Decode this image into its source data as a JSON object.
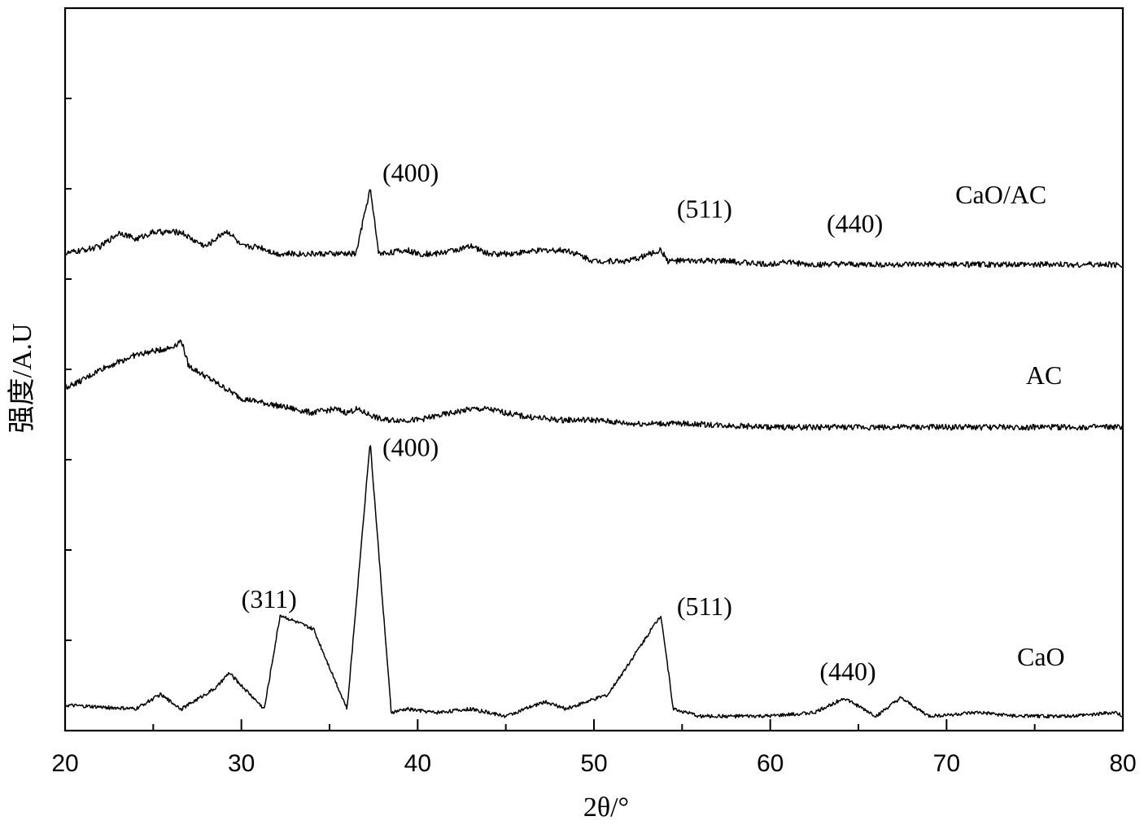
{
  "chart_data": {
    "type": "line",
    "xlabel": "2θ/°",
    "ylabel": "强度/A.U",
    "xlim": [
      20,
      80
    ],
    "x_ticks": [
      20,
      30,
      40,
      50,
      60,
      70,
      80
    ],
    "y_ticks_labeled": false,
    "grid": false,
    "legend": "none",
    "series": [
      {
        "name": "CaO/AC",
        "baseline": 0.64,
        "points": [
          [
            20,
            0.66
          ],
          [
            22,
            0.67
          ],
          [
            23.1,
            0.69
          ],
          [
            24,
            0.68
          ],
          [
            25,
            0.69
          ],
          [
            26.6,
            0.69
          ],
          [
            27.2,
            0.68
          ],
          [
            28,
            0.67
          ],
          [
            29,
            0.69
          ],
          [
            29.3,
            0.69
          ],
          [
            29.5,
            0.685
          ],
          [
            30,
            0.67
          ],
          [
            31,
            0.67
          ],
          [
            32,
            0.66
          ],
          [
            34,
            0.66
          ],
          [
            35.9,
            0.66
          ],
          [
            36.5,
            0.66
          ],
          [
            37.3,
            0.75
          ],
          [
            37.8,
            0.66
          ],
          [
            39.4,
            0.665
          ],
          [
            40,
            0.66
          ],
          [
            41,
            0.66
          ],
          [
            43.1,
            0.67
          ],
          [
            44,
            0.66
          ],
          [
            45,
            0.66
          ],
          [
            47.3,
            0.665
          ],
          [
            48.5,
            0.665
          ],
          [
            50,
            0.65
          ],
          [
            52,
            0.65
          ],
          [
            53.8,
            0.665
          ],
          [
            54.2,
            0.65
          ],
          [
            56,
            0.65
          ],
          [
            57.4,
            0.65
          ],
          [
            60,
            0.645
          ],
          [
            60.7,
            0.65
          ],
          [
            62,
            0.645
          ],
          [
            64.7,
            0.645
          ],
          [
            66,
            0.645
          ],
          [
            70,
            0.645
          ],
          [
            75,
            0.645
          ],
          [
            80,
            0.645
          ]
        ]
      },
      {
        "name": "AC",
        "baseline": 0.42,
        "points": [
          [
            20,
            0.475
          ],
          [
            21,
            0.485
          ],
          [
            22,
            0.5
          ],
          [
            23,
            0.51
          ],
          [
            24,
            0.52
          ],
          [
            25,
            0.525
          ],
          [
            26,
            0.53
          ],
          [
            26.6,
            0.54
          ],
          [
            27,
            0.505
          ],
          [
            28,
            0.49
          ],
          [
            29,
            0.475
          ],
          [
            30,
            0.46
          ],
          [
            31,
            0.455
          ],
          [
            32,
            0.45
          ],
          [
            33,
            0.445
          ],
          [
            34,
            0.44
          ],
          [
            35.3,
            0.445
          ],
          [
            36,
            0.44
          ],
          [
            36.5,
            0.445
          ],
          [
            37.5,
            0.435
          ],
          [
            38,
            0.43
          ],
          [
            39,
            0.43
          ],
          [
            40,
            0.43
          ],
          [
            41,
            0.435
          ],
          [
            42,
            0.44
          ],
          [
            43,
            0.445
          ],
          [
            44,
            0.445
          ],
          [
            45,
            0.44
          ],
          [
            46,
            0.435
          ],
          [
            48,
            0.43
          ],
          [
            50,
            0.43
          ],
          [
            52,
            0.425
          ],
          [
            55,
            0.425
          ],
          [
            60,
            0.42
          ],
          [
            65,
            0.42
          ],
          [
            70,
            0.42
          ],
          [
            75,
            0.42
          ],
          [
            80,
            0.42
          ]
        ]
      },
      {
        "name": "CaO",
        "baseline": 0.02,
        "points": [
          [
            20,
            0.035
          ],
          [
            24,
            0.03
          ],
          [
            25.4,
            0.05
          ],
          [
            26.6,
            0.03
          ],
          [
            28.6,
            0.06
          ],
          [
            29.3,
            0.08
          ],
          [
            31.3,
            0.03
          ],
          [
            32.2,
            0.16
          ],
          [
            34.1,
            0.14
          ],
          [
            36,
            0.03
          ],
          [
            37.3,
            0.4
          ],
          [
            38.5,
            0.025
          ],
          [
            39.4,
            0.03
          ],
          [
            41,
            0.025
          ],
          [
            43,
            0.03
          ],
          [
            45,
            0.02
          ],
          [
            47.2,
            0.04
          ],
          [
            48.4,
            0.03
          ],
          [
            50.8,
            0.05
          ],
          [
            53.8,
            0.16
          ],
          [
            54.5,
            0.03
          ],
          [
            56,
            0.02
          ],
          [
            58,
            0.02
          ],
          [
            60,
            0.02
          ],
          [
            62.5,
            0.025
          ],
          [
            64.2,
            0.045
          ],
          [
            66,
            0.02
          ],
          [
            67.4,
            0.045
          ],
          [
            69,
            0.02
          ],
          [
            71.8,
            0.025
          ],
          [
            74,
            0.02
          ],
          [
            77,
            0.02
          ],
          [
            79.6,
            0.025
          ],
          [
            80,
            0.02
          ]
        ]
      }
    ],
    "series_labels": [
      {
        "text": "CaO/AC",
        "x": 70.5,
        "y": 0.73
      },
      {
        "text": "AC",
        "x": 74.5,
        "y": 0.48
      },
      {
        "text": "CaO",
        "x": 74,
        "y": 0.09
      }
    ],
    "peak_labels": [
      {
        "text": "(400)",
        "x": 38.0,
        "y": 0.76
      },
      {
        "text": "(511)",
        "x": 54.7,
        "y": 0.71
      },
      {
        "text": "(440)",
        "x": 63.2,
        "y": 0.69
      },
      {
        "text": "(400)",
        "x": 38.0,
        "y": 0.38
      },
      {
        "text": "(311)",
        "x": 30.0,
        "y": 0.17
      },
      {
        "text": "(511)",
        "x": 54.7,
        "y": 0.16
      },
      {
        "text": "(440)",
        "x": 62.8,
        "y": 0.07
      }
    ]
  }
}
